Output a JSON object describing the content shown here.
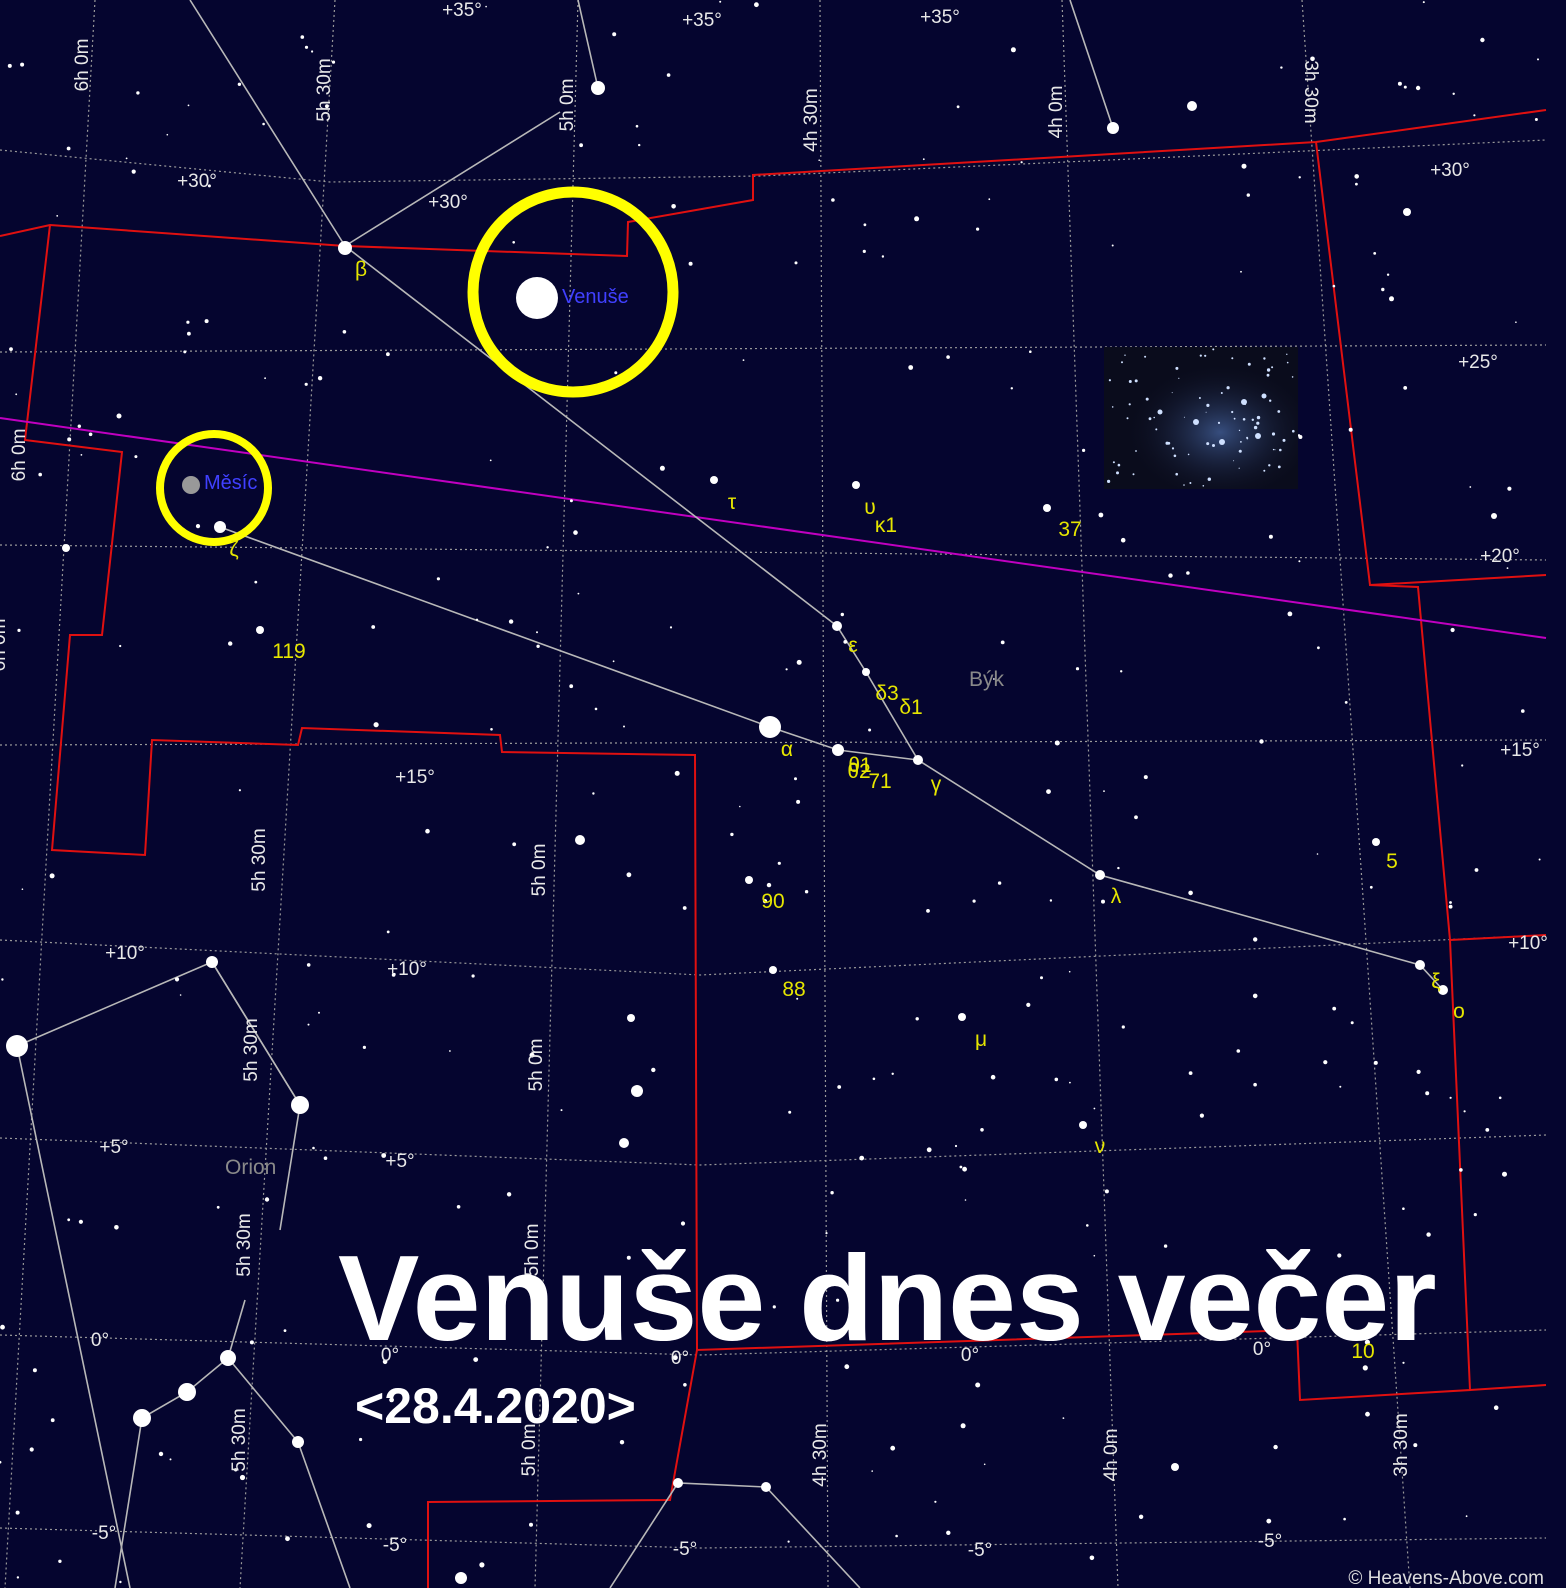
{
  "title": "Venuše dnes večer",
  "date": "<28.4.2020>",
  "credit": "© Heavens-Above.com",
  "planets": [
    "Venuše",
    "Měsíc"
  ],
  "constellations": [
    "Býk",
    "Orion"
  ],
  "star_labels": [
    "β",
    "ζ",
    "τ",
    "υ",
    "κ1",
    "37",
    "119",
    "ε",
    "δ3",
    "δ1",
    "α",
    "θ1",
    "θ2",
    "71",
    "γ",
    "90",
    "88",
    "λ",
    "5",
    "μ",
    "ν",
    "ξ",
    "ο",
    "10"
  ],
  "dec_labels": [
    "+35°",
    "+30°",
    "+25°",
    "+20°",
    "+15°",
    "+10°",
    "+5°",
    "0°",
    "-5°"
  ],
  "ra_labels": [
    "6h 0m",
    "5h 30m",
    "5h 0m",
    "4h 30m",
    "4h 0m",
    "3h 30m"
  ]
}
